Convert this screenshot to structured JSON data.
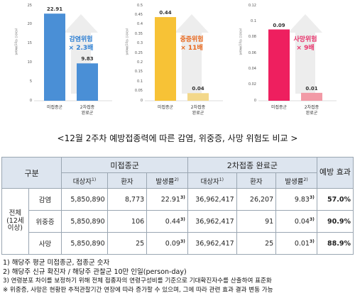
{
  "charts": [
    {
      "ylabel": "발생률(10만 인일당)",
      "ticks": [
        "0",
        "5",
        "10",
        "15",
        "20",
        "25"
      ],
      "ymax": 25,
      "values": [
        22.91,
        9.83
      ],
      "value_labels": [
        "22.91",
        "9.83"
      ],
      "categories": [
        [
          "미접종군"
        ],
        [
          "2차접종",
          "완료군"
        ]
      ],
      "color_main": "#4a8fd6",
      "color_second": "#4a8fd6",
      "risk": [
        "감염위험",
        "× 2.3배"
      ],
      "risk_color": "#2d7fd3"
    },
    {
      "ylabel": "발생률(10만 인일당)",
      "ticks": [
        "0",
        "0.05",
        "0.1",
        "0.15",
        "0.2",
        "0.25",
        "0.3",
        "0.35",
        "0.4",
        "0.45",
        "0.5"
      ],
      "ymax": 0.5,
      "values": [
        0.44,
        0.04
      ],
      "value_labels": [
        "0.44",
        "0.04"
      ],
      "categories": [
        [
          "미접종군"
        ],
        [
          "2차접종",
          "완료군"
        ]
      ],
      "color_main": "#f7c236",
      "color_second": "#f3d88a",
      "risk": [
        "중증위험",
        "× 11배"
      ],
      "risk_color": "#e8671c"
    },
    {
      "ylabel": "발생률(10만 인일당)",
      "ticks": [
        "0",
        "0.02",
        "0.04",
        "0.06",
        "0.08",
        "0.1",
        "0.12"
      ],
      "ymax": 0.12,
      "values": [
        0.09,
        0.01
      ],
      "value_labels": [
        "0.09",
        "0.01"
      ],
      "categories": [
        [
          "미접종군"
        ],
        [
          "2차접종",
          "완료군"
        ]
      ],
      "color_main": "#ee1f5f",
      "color_second": "#f29aa6",
      "risk": [
        "사망위험",
        "× 9배"
      ],
      "risk_color": "#e8336b"
    }
  ],
  "caption": "<12월 2주차 예방접종력에 따른 감염, 위중증, 사망 위험도 비교 >",
  "table": {
    "h_group": "구분",
    "h_unvax": "미접종군",
    "h_vax": "2차접종 완료군",
    "h_eff": "예방 효과",
    "h_target": "대상자",
    "h_patients": "환자",
    "h_rate": "발생률",
    "fn1": "1)",
    "fn2": "2)",
    "fn3": "3)",
    "group_label": "전체 (12세 이상)",
    "rows": [
      {
        "type": "감염",
        "u_target": "5,850,890",
        "u_pat": "8,773",
        "u_rate": "22.91",
        "v_target": "36,962,417",
        "v_pat": "26,207",
        "v_rate": "9.83",
        "eff": "57.0%"
      },
      {
        "type": "위중증",
        "u_target": "5,850,890",
        "u_pat": "106",
        "u_rate": "0.44",
        "v_target": "36,962,417",
        "v_pat": "91",
        "v_rate": "0.04",
        "eff": "90.9%"
      },
      {
        "type": "사망",
        "u_target": "5,850,890",
        "u_pat": "25",
        "u_rate": "0.09",
        "v_target": "36,962,417",
        "v_pat": "25",
        "v_rate": "0.01",
        "eff": "88.9%"
      }
    ]
  },
  "notes": [
    "1) 해당주 평균 미접종군, 접종군 숫자",
    "2) 해당주 신규 확진자 / 해당주 관찰군 10만 인일(person-day)",
    "3) 연령분포 차이를 보정하기 위해 전체 접종자의 연령구성비를 기준으로 기대확진자수를 산출하여 표준화",
    "※ 위중증, 사망은 현황판 추적관찰기간 연장에 따라 증가할 수 있으며, 그에 따라 관련 효과 결과 변동 가능"
  ]
}
